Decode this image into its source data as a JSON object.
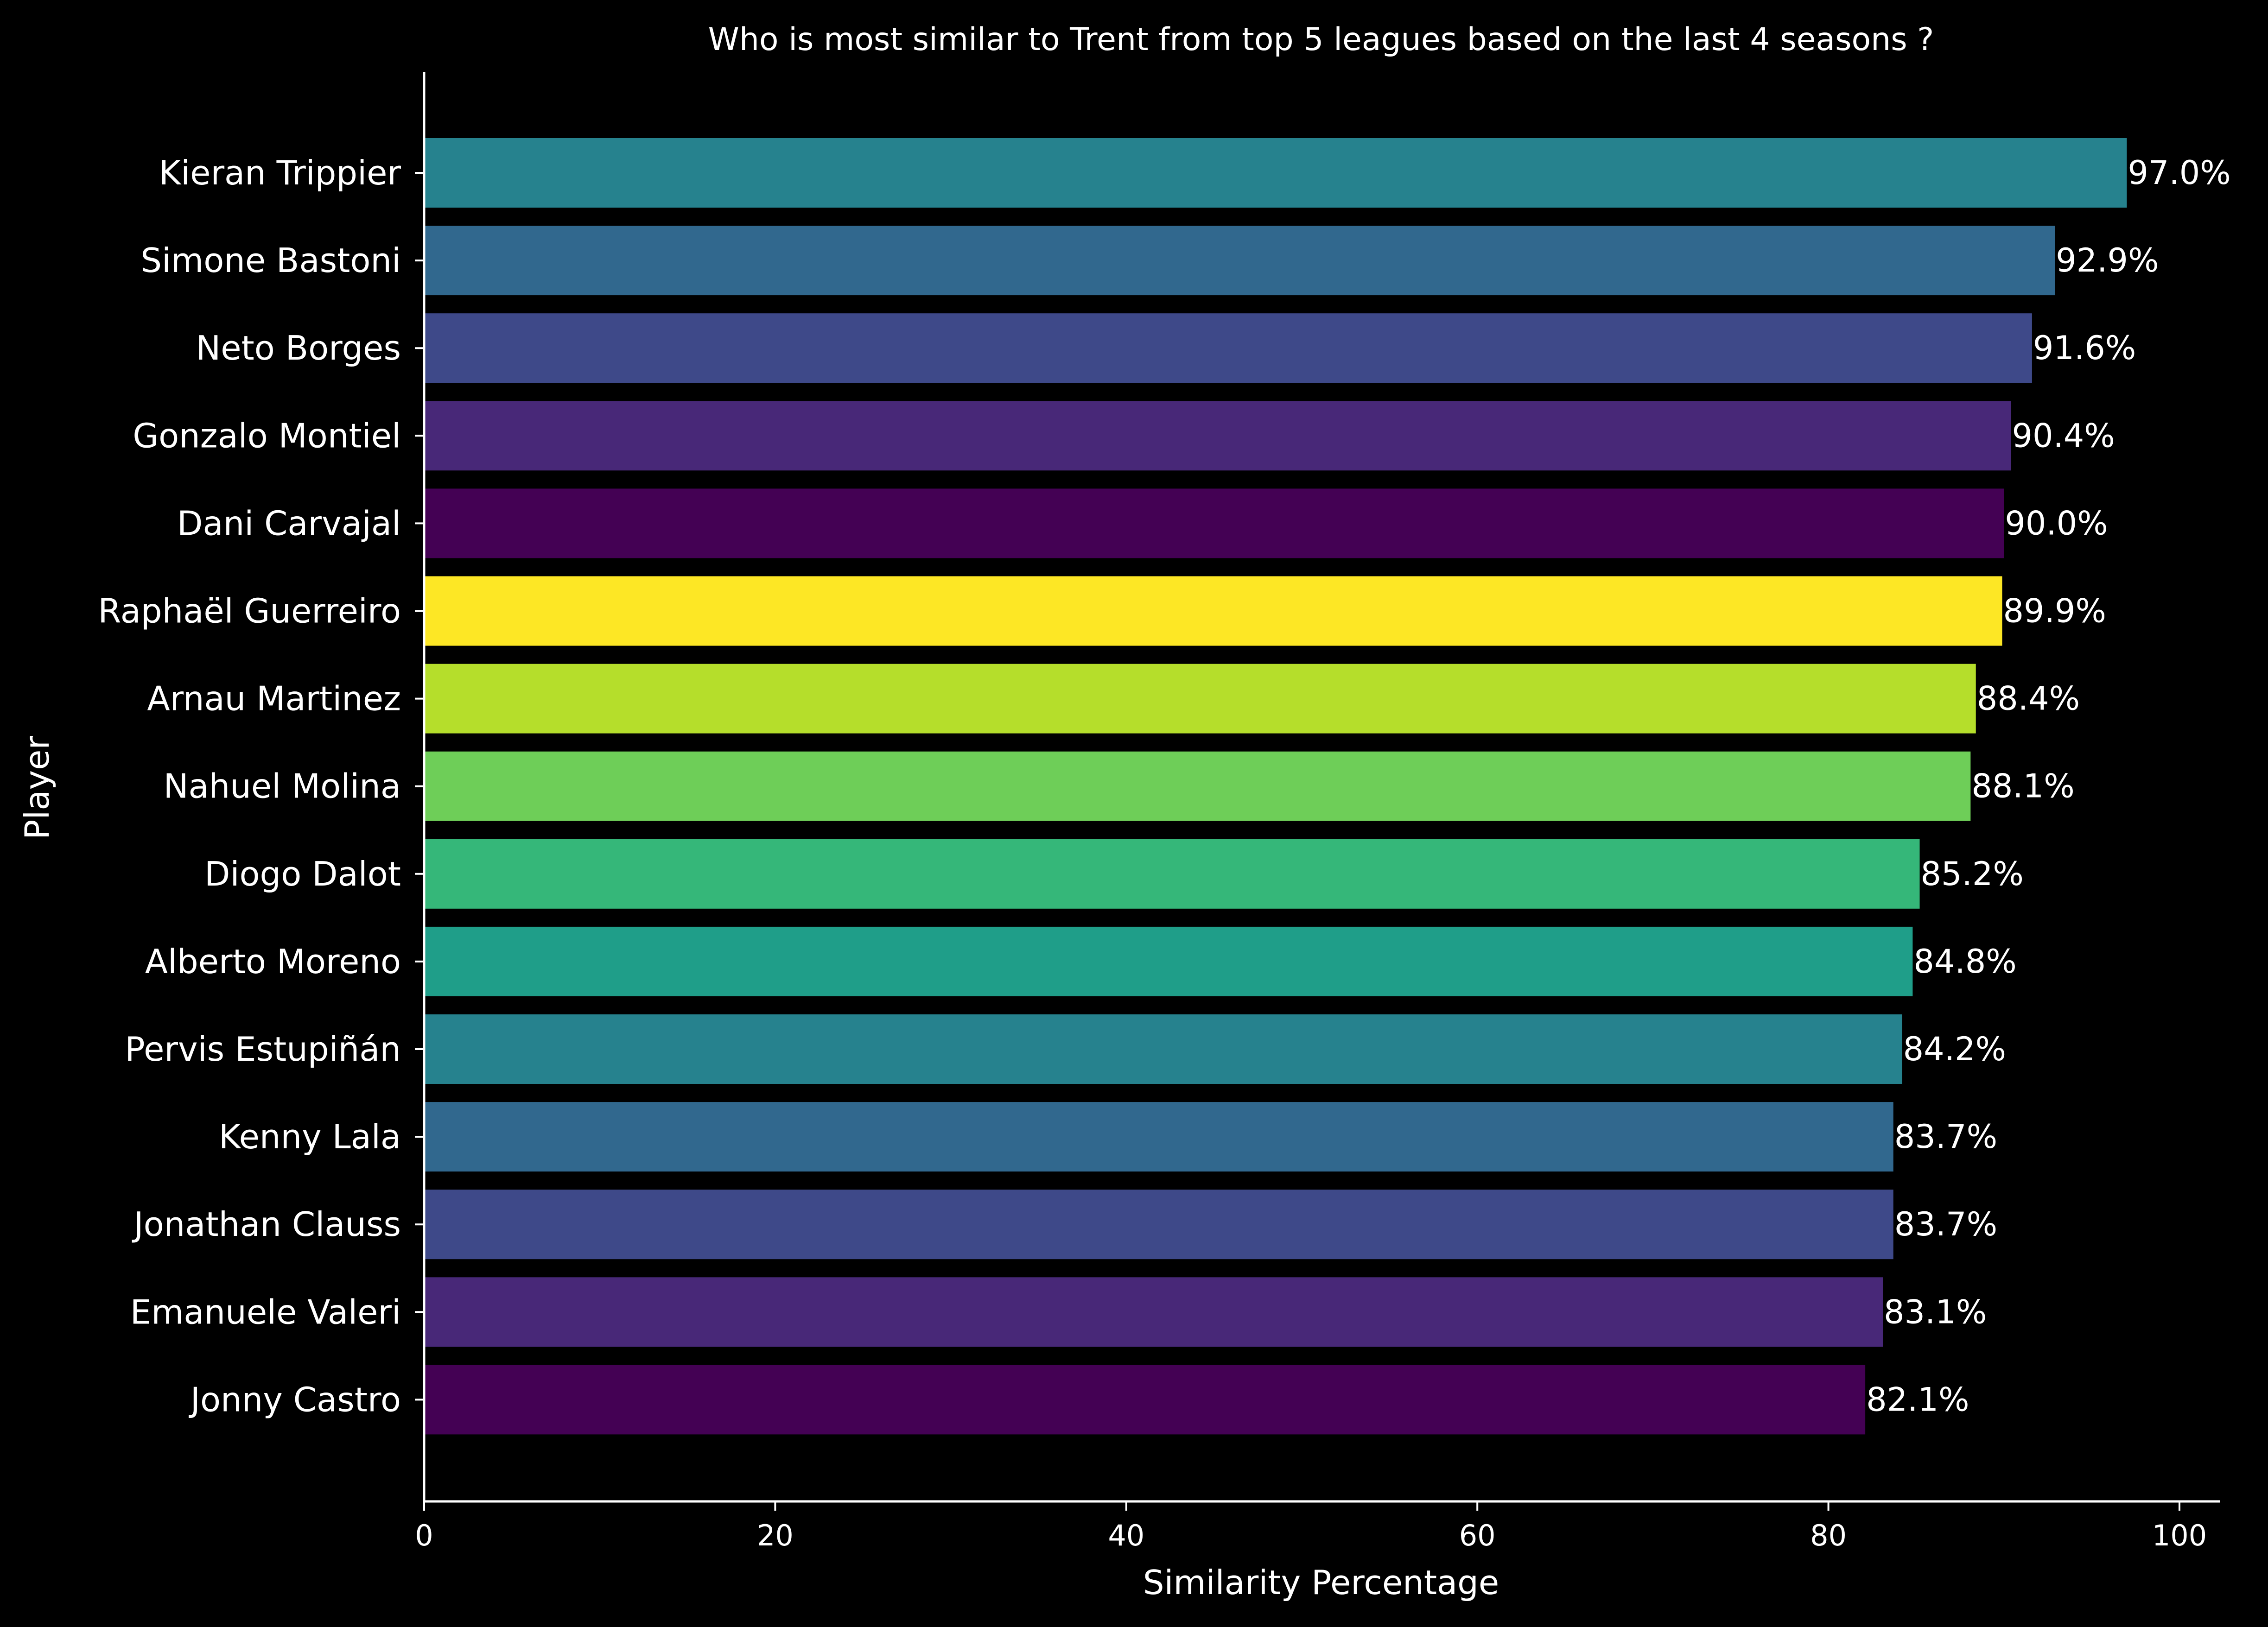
{
  "chart_data": {
    "type": "bar",
    "orientation": "horizontal",
    "title": "Who is most similar to Trent from top 5 leagues based on the last 4 seasons ?",
    "xlabel": "Similarity Percentage",
    "ylabel": "Player",
    "xlim": [
      0,
      100
    ],
    "xticks": [
      0,
      20,
      40,
      60,
      80,
      100
    ],
    "xtick_labels": [
      "0",
      "20",
      "40",
      "60",
      "80",
      "100"
    ],
    "grid": false,
    "background_color": "#000000",
    "text_color": "#ffffff",
    "categories": [
      "Kieran Trippier",
      "Simone Bastoni",
      "Neto Borges",
      "Gonzalo Montiel",
      "Dani Carvajal",
      "Raphaël Guerreiro",
      "Arnau Martinez",
      "Nahuel Molina",
      "Diogo Dalot",
      "Alberto Moreno",
      "Pervis Estupiñán",
      "Kenny Lala",
      "Jonathan Clauss",
      "Emanuele Valeri",
      "Jonny Castro"
    ],
    "values": [
      97.0,
      92.9,
      91.6,
      90.4,
      90.0,
      89.9,
      88.4,
      88.1,
      85.2,
      84.8,
      84.2,
      83.7,
      83.7,
      83.1,
      82.1
    ],
    "value_labels": [
      "97.0%",
      "92.9%",
      "91.6%",
      "90.4%",
      "90.0%",
      "89.9%",
      "88.4%",
      "88.1%",
      "85.2%",
      "84.8%",
      "84.2%",
      "83.7%",
      "83.7%",
      "83.1%",
      "82.1%"
    ],
    "colors": [
      "#26828e",
      "#31688e",
      "#3e4989",
      "#482878",
      "#440154",
      "#fde725",
      "#b5de2b",
      "#6ece58",
      "#35b779",
      "#1f9e89",
      "#26828e",
      "#31688e",
      "#3e4989",
      "#482878",
      "#440154"
    ]
  }
}
